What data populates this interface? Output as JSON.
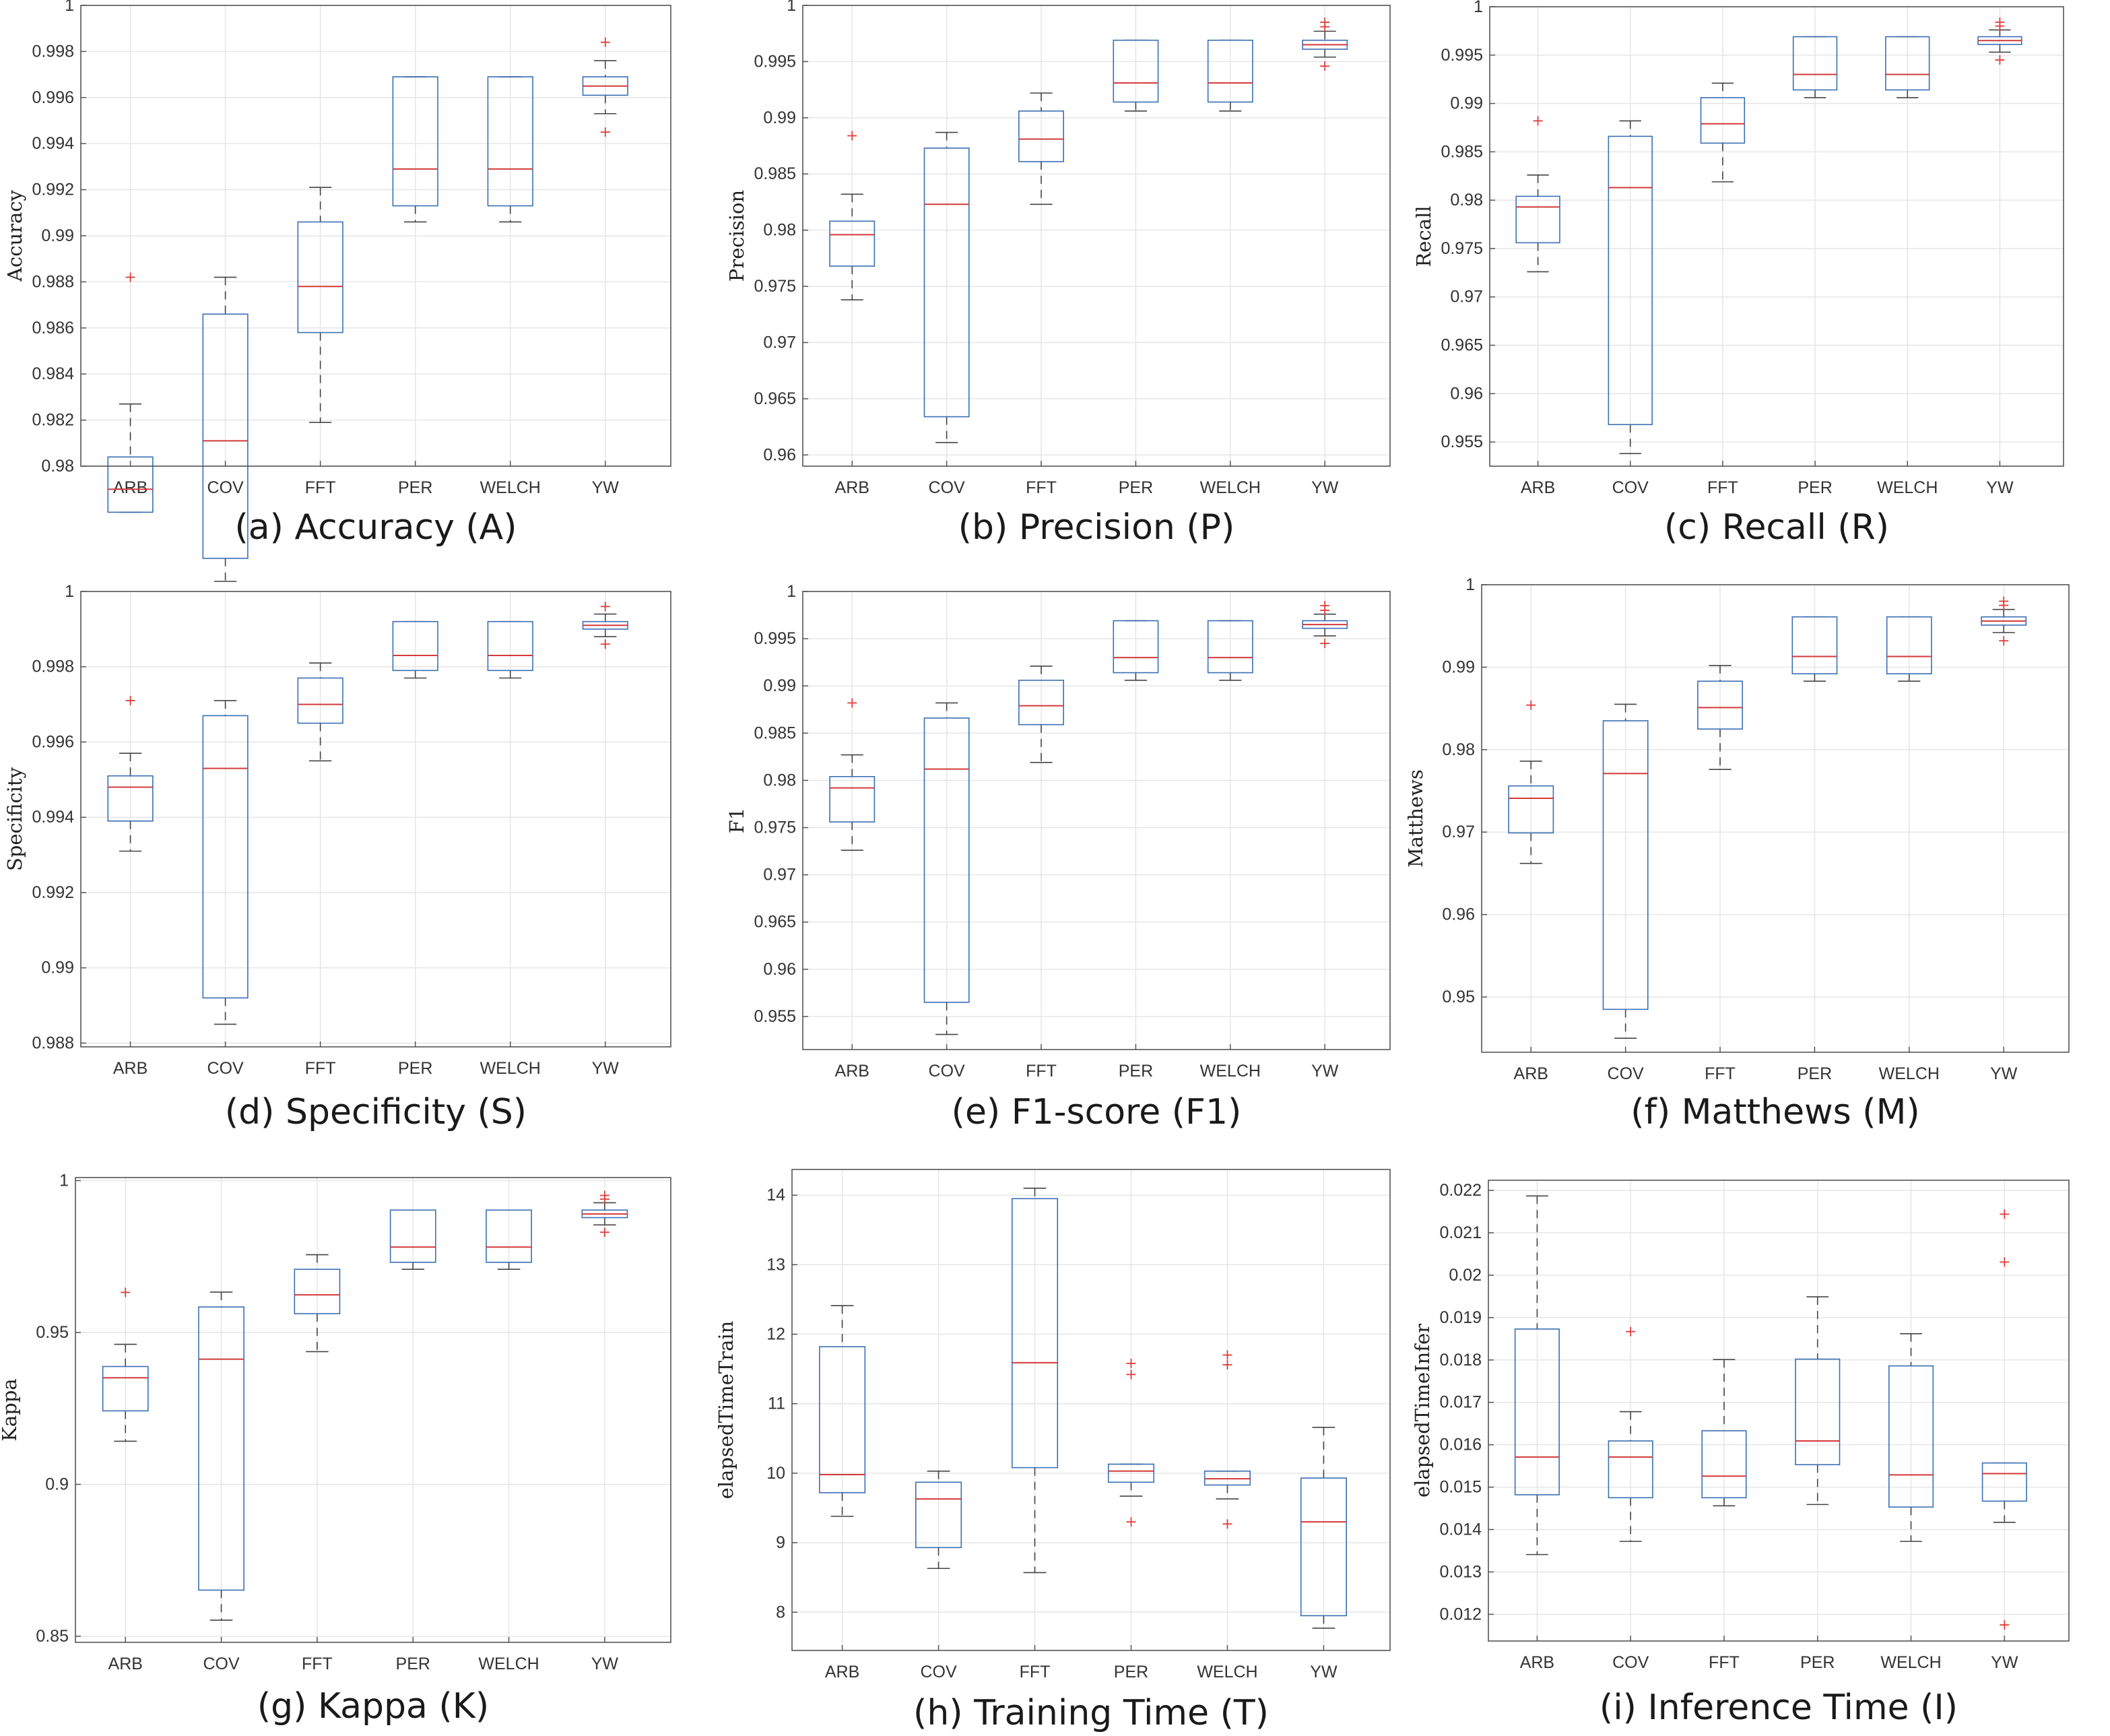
{
  "figure": {
    "categories": [
      "ARB",
      "COV",
      "FFT",
      "PER",
      "WELCH",
      "YW"
    ],
    "colors": {
      "box": "#3a6fb5",
      "median": "#d23a3a",
      "outlier": "#e03c3c",
      "whisker": "#444444",
      "axis": "#555555",
      "grid": "#e6e6e6"
    }
  },
  "chart_data": [
    {
      "type": "boxplot",
      "caption": "(a) Accuracy (A)",
      "ylabel": "Accuracy",
      "ylim": [
        0.98,
        1
      ],
      "yticks": [
        0.98,
        0.982,
        0.984,
        0.986,
        0.988,
        0.99,
        0.992,
        0.994,
        0.996,
        0.998,
        1
      ],
      "yticklabels": [
        "0.98",
        "0.982",
        "0.984",
        "0.986",
        "0.988",
        "0.99",
        "0.992",
        "0.994",
        "0.996",
        "0.998",
        "1"
      ],
      "categories": [
        "ARB",
        "COV",
        "FFT",
        "PER",
        "WELCH",
        "YW"
      ],
      "series": [
        {
          "name": "ARB",
          "whislo": 0.978,
          "q1": 0.978,
          "med": 0.979,
          "q3": 0.9804,
          "whishi": 0.9827,
          "fliers": [
            0.9882
          ]
        },
        {
          "name": "COV",
          "whislo": 0.975,
          "q1": 0.976,
          "med": 0.9811,
          "q3": 0.9866,
          "whishi": 0.9882,
          "fliers": []
        },
        {
          "name": "FFT",
          "whislo": 0.9819,
          "q1": 0.9858,
          "med": 0.9878,
          "q3": 0.9906,
          "whishi": 0.9921,
          "fliers": []
        },
        {
          "name": "PER",
          "whislo": 0.9906,
          "q1": 0.9913,
          "med": 0.9929,
          "q3": 0.9969,
          "whishi": 0.9969,
          "fliers": []
        },
        {
          "name": "WELCH",
          "whislo": 0.9906,
          "q1": 0.9913,
          "med": 0.9929,
          "q3": 0.9969,
          "whishi": 0.9969,
          "fliers": []
        },
        {
          "name": "YW",
          "whislo": 0.9953,
          "q1": 0.9961,
          "med": 0.9965,
          "q3": 0.9969,
          "whishi": 0.9976,
          "fliers": [
            0.9984,
            0.9945
          ]
        }
      ]
    },
    {
      "type": "boxplot",
      "caption": "(b) Precision (P)",
      "ylabel": "Precision",
      "ylim": [
        0.959,
        1
      ],
      "yticks": [
        0.96,
        0.965,
        0.97,
        0.975,
        0.98,
        0.985,
        0.99,
        0.995,
        1
      ],
      "yticklabels": [
        "0.96",
        "0.965",
        "0.97",
        "0.975",
        "0.98",
        "0.985",
        "0.99",
        "0.995",
        "1"
      ],
      "categories": [
        "ARB",
        "COV",
        "FFT",
        "PER",
        "WELCH",
        "YW"
      ],
      "series": [
        {
          "name": "ARB",
          "whislo": 0.9738,
          "q1": 0.9768,
          "med": 0.9796,
          "q3": 0.9808,
          "whishi": 0.9832,
          "fliers": [
            0.9884
          ]
        },
        {
          "name": "COV",
          "whislo": 0.9611,
          "q1": 0.9634,
          "med": 0.9823,
          "q3": 0.9873,
          "whishi": 0.9887,
          "fliers": []
        },
        {
          "name": "FFT",
          "whislo": 0.9823,
          "q1": 0.9861,
          "med": 0.9881,
          "q3": 0.9906,
          "whishi": 0.9922,
          "fliers": []
        },
        {
          "name": "PER",
          "whislo": 0.9906,
          "q1": 0.9914,
          "med": 0.9931,
          "q3": 0.9969,
          "whishi": 0.9969,
          "fliers": []
        },
        {
          "name": "WELCH",
          "whislo": 0.9906,
          "q1": 0.9914,
          "med": 0.9931,
          "q3": 0.9969,
          "whishi": 0.9969,
          "fliers": []
        },
        {
          "name": "YW",
          "whislo": 0.9954,
          "q1": 0.9961,
          "med": 0.9965,
          "q3": 0.9969,
          "whishi": 0.9977,
          "fliers": [
            0.9985,
            0.9981,
            0.9946
          ]
        }
      ]
    },
    {
      "type": "boxplot",
      "caption": "(c) Recall (R)",
      "ylabel": "Recall",
      "ylim": [
        0.9525,
        1
      ],
      "yticks": [
        0.955,
        0.96,
        0.965,
        0.97,
        0.975,
        0.98,
        0.985,
        0.99,
        0.995,
        1
      ],
      "yticklabels": [
        "0.955",
        "0.96",
        "0.965",
        "0.97",
        "0.975",
        "0.98",
        "0.985",
        "0.99",
        "0.995",
        "1"
      ],
      "categories": [
        "ARB",
        "COV",
        "FFT",
        "PER",
        "WELCH",
        "YW"
      ],
      "series": [
        {
          "name": "ARB",
          "whislo": 0.9726,
          "q1": 0.9756,
          "med": 0.9793,
          "q3": 0.9804,
          "whishi": 0.9826,
          "fliers": [
            0.9882
          ]
        },
        {
          "name": "COV",
          "whislo": 0.9538,
          "q1": 0.9568,
          "med": 0.9813,
          "q3": 0.9866,
          "whishi": 0.9882,
          "fliers": []
        },
        {
          "name": "FFT",
          "whislo": 0.9819,
          "q1": 0.9859,
          "med": 0.9879,
          "q3": 0.9906,
          "whishi": 0.9921,
          "fliers": []
        },
        {
          "name": "PER",
          "whislo": 0.9906,
          "q1": 0.9914,
          "med": 0.993,
          "q3": 0.9969,
          "whishi": 0.9969,
          "fliers": []
        },
        {
          "name": "WELCH",
          "whislo": 0.9906,
          "q1": 0.9914,
          "med": 0.993,
          "q3": 0.9969,
          "whishi": 0.9969,
          "fliers": []
        },
        {
          "name": "YW",
          "whislo": 0.9953,
          "q1": 0.9961,
          "med": 0.9965,
          "q3": 0.9969,
          "whishi": 0.9976,
          "fliers": [
            0.9984,
            0.998,
            0.9945
          ]
        }
      ]
    },
    {
      "type": "boxplot",
      "caption": "(d) Specificity (S)",
      "ylabel": "Specificity",
      "ylim": [
        0.9879,
        1
      ],
      "yticks": [
        0.988,
        0.99,
        0.992,
        0.994,
        0.996,
        0.998,
        1
      ],
      "yticklabels": [
        "0.988",
        "0.99",
        "0.992",
        "0.994",
        "0.996",
        "0.998",
        "1"
      ],
      "categories": [
        "ARB",
        "COV",
        "FFT",
        "PER",
        "WELCH",
        "YW"
      ],
      "series": [
        {
          "name": "ARB",
          "whislo": 0.9931,
          "q1": 0.9939,
          "med": 0.9948,
          "q3": 0.9951,
          "whishi": 0.9957,
          "fliers": [
            0.9971
          ]
        },
        {
          "name": "COV",
          "whislo": 0.9885,
          "q1": 0.9892,
          "med": 0.9953,
          "q3": 0.9967,
          "whishi": 0.9971,
          "fliers": []
        },
        {
          "name": "FFT",
          "whislo": 0.9955,
          "q1": 0.9965,
          "med": 0.997,
          "q3": 0.9977,
          "whishi": 0.9981,
          "fliers": []
        },
        {
          "name": "PER",
          "whislo": 0.9977,
          "q1": 0.9979,
          "med": 0.9983,
          "q3": 0.9992,
          "whishi": 0.9992,
          "fliers": []
        },
        {
          "name": "WELCH",
          "whislo": 0.9977,
          "q1": 0.9979,
          "med": 0.9983,
          "q3": 0.9992,
          "whishi": 0.9992,
          "fliers": []
        },
        {
          "name": "YW",
          "whislo": 0.9988,
          "q1": 0.999,
          "med": 0.9991,
          "q3": 0.9992,
          "whishi": 0.9994,
          "fliers": [
            0.9996,
            0.9986
          ]
        }
      ]
    },
    {
      "type": "boxplot",
      "caption": "(e) F1-score (F1)",
      "ylabel": "F1",
      "ylim": [
        0.9515,
        1
      ],
      "yticks": [
        0.955,
        0.96,
        0.965,
        0.97,
        0.975,
        0.98,
        0.985,
        0.99,
        0.995,
        1
      ],
      "yticklabels": [
        "0.955",
        "0.96",
        "0.965",
        "0.97",
        "0.975",
        "0.98",
        "0.985",
        "0.99",
        "0.995",
        "1"
      ],
      "categories": [
        "ARB",
        "COV",
        "FFT",
        "PER",
        "WELCH",
        "YW"
      ],
      "series": [
        {
          "name": "ARB",
          "whislo": 0.9726,
          "q1": 0.9756,
          "med": 0.9792,
          "q3": 0.9804,
          "whishi": 0.9827,
          "fliers": [
            0.9882
          ]
        },
        {
          "name": "COV",
          "whislo": 0.9531,
          "q1": 0.9565,
          "med": 0.9812,
          "q3": 0.9866,
          "whishi": 0.9882,
          "fliers": []
        },
        {
          "name": "FFT",
          "whislo": 0.9819,
          "q1": 0.9859,
          "med": 0.9879,
          "q3": 0.9906,
          "whishi": 0.9921,
          "fliers": []
        },
        {
          "name": "PER",
          "whislo": 0.9906,
          "q1": 0.9914,
          "med": 0.993,
          "q3": 0.9969,
          "whishi": 0.9969,
          "fliers": []
        },
        {
          "name": "WELCH",
          "whislo": 0.9906,
          "q1": 0.9914,
          "med": 0.993,
          "q3": 0.9969,
          "whishi": 0.9969,
          "fliers": []
        },
        {
          "name": "YW",
          "whislo": 0.9953,
          "q1": 0.9961,
          "med": 0.9965,
          "q3": 0.9969,
          "whishi": 0.9976,
          "fliers": [
            0.9985,
            0.998,
            0.9945
          ]
        }
      ]
    },
    {
      "type": "boxplot",
      "caption": "(f) Matthews (M)",
      "ylabel": "Matthews",
      "ylim": [
        0.9433,
        1
      ],
      "yticks": [
        0.95,
        0.96,
        0.97,
        0.98,
        0.99,
        1
      ],
      "yticklabels": [
        "0.95",
        "0.96",
        "0.97",
        "0.98",
        "0.99",
        "1"
      ],
      "categories": [
        "ARB",
        "COV",
        "FFT",
        "PER",
        "WELCH",
        "YW"
      ],
      "series": [
        {
          "name": "ARB",
          "whislo": 0.9662,
          "q1": 0.9699,
          "med": 0.9741,
          "q3": 0.9756,
          "whishi": 0.9786,
          "fliers": [
            0.9854
          ]
        },
        {
          "name": "COV",
          "whislo": 0.945,
          "q1": 0.9485,
          "med": 0.9771,
          "q3": 0.9835,
          "whishi": 0.9855,
          "fliers": []
        },
        {
          "name": "FFT",
          "whislo": 0.9776,
          "q1": 0.9825,
          "med": 0.9851,
          "q3": 0.9883,
          "whishi": 0.9902,
          "fliers": []
        },
        {
          "name": "PER",
          "whislo": 0.9883,
          "q1": 0.9892,
          "med": 0.9913,
          "q3": 0.9961,
          "whishi": 0.9961,
          "fliers": []
        },
        {
          "name": "WELCH",
          "whislo": 0.9883,
          "q1": 0.9892,
          "med": 0.9913,
          "q3": 0.9961,
          "whishi": 0.9961,
          "fliers": []
        },
        {
          "name": "YW",
          "whislo": 0.9942,
          "q1": 0.9951,
          "med": 0.9956,
          "q3": 0.9961,
          "whishi": 0.997,
          "fliers": [
            0.998,
            0.9975,
            0.9932
          ]
        }
      ]
    },
    {
      "type": "boxplot",
      "caption": "(g) Kappa (K)",
      "ylabel": "Kappa",
      "ylim": [
        0.848,
        1.001
      ],
      "yticks": [
        0.85,
        0.9,
        0.95,
        1
      ],
      "yticklabels": [
        "0.85",
        "0.9",
        "0.95",
        "1"
      ],
      "categories": [
        "ARB",
        "COV",
        "FFT",
        "PER",
        "WELCH",
        "YW"
      ],
      "series": [
        {
          "name": "ARB",
          "whislo": 0.9142,
          "q1": 0.9242,
          "med": 0.9351,
          "q3": 0.9388,
          "whishi": 0.9461,
          "fliers": [
            0.9632
          ]
        },
        {
          "name": "COV",
          "whislo": 0.8553,
          "q1": 0.8652,
          "med": 0.9412,
          "q3": 0.9584,
          "whishi": 0.9633,
          "fliers": []
        },
        {
          "name": "FFT",
          "whislo": 0.9437,
          "q1": 0.9562,
          "med": 0.9624,
          "q3": 0.9708,
          "whishi": 0.9756,
          "fliers": []
        },
        {
          "name": "PER",
          "whislo": 0.9708,
          "q1": 0.9731,
          "med": 0.9781,
          "q3": 0.9903,
          "whishi": 0.9903,
          "fliers": []
        },
        {
          "name": "WELCH",
          "whislo": 0.9708,
          "q1": 0.9731,
          "med": 0.9781,
          "q3": 0.9903,
          "whishi": 0.9903,
          "fliers": []
        },
        {
          "name": "YW",
          "whislo": 0.9854,
          "q1": 0.9878,
          "med": 0.989,
          "q3": 0.9903,
          "whishi": 0.9927,
          "fliers": [
            0.9951,
            0.9939,
            0.983
          ]
        }
      ]
    },
    {
      "type": "boxplot",
      "caption": "(h) Training Time (T)",
      "ylabel": "elapsedTimeTrain",
      "ylim": [
        7.45,
        14.37
      ],
      "yticks": [
        8,
        9,
        10,
        11,
        12,
        13,
        14
      ],
      "yticklabels": [
        "8",
        "9",
        "10",
        "11",
        "12",
        "13",
        "14"
      ],
      "categories": [
        "ARB",
        "COV",
        "FFT",
        "PER",
        "WELCH",
        "YW"
      ],
      "series": [
        {
          "name": "ARB",
          "whislo": 9.38,
          "q1": 9.72,
          "med": 9.98,
          "q3": 11.82,
          "whishi": 12.41,
          "fliers": []
        },
        {
          "name": "COV",
          "whislo": 8.63,
          "q1": 8.93,
          "med": 9.63,
          "q3": 9.87,
          "whishi": 10.03,
          "fliers": []
        },
        {
          "name": "FFT",
          "whislo": 8.57,
          "q1": 10.08,
          "med": 11.59,
          "q3": 13.95,
          "whishi": 14.1,
          "fliers": []
        },
        {
          "name": "PER",
          "whislo": 9.67,
          "q1": 9.87,
          "med": 10.03,
          "q3": 10.13,
          "whishi": 10.13,
          "fliers": [
            11.58,
            11.42,
            9.3
          ]
        },
        {
          "name": "WELCH",
          "whislo": 9.63,
          "q1": 9.83,
          "med": 9.92,
          "q3": 10.03,
          "whishi": 10.03,
          "fliers": [
            11.7,
            11.56,
            9.27
          ]
        },
        {
          "name": "YW",
          "whislo": 7.77,
          "q1": 7.95,
          "med": 9.3,
          "q3": 9.93,
          "whishi": 10.66,
          "fliers": []
        }
      ]
    },
    {
      "type": "boxplot",
      "caption": "(i) Inference Time (I)",
      "ylabel": "elapsedTimeInfer",
      "ylim": [
        0.01137,
        0.02224
      ],
      "yticks": [
        0.012,
        0.013,
        0.014,
        0.015,
        0.016,
        0.017,
        0.018,
        0.019,
        0.02,
        0.021,
        0.022
      ],
      "yticklabels": [
        "0.012",
        "0.013",
        "0.014",
        "0.015",
        "0.016",
        "0.017",
        "0.018",
        "0.019",
        "0.02",
        "0.021",
        "0.022"
      ],
      "categories": [
        "ARB",
        "COV",
        "FFT",
        "PER",
        "WELCH",
        "YW"
      ],
      "series": [
        {
          "name": "ARB",
          "whislo": 0.01341,
          "q1": 0.01482,
          "med": 0.01571,
          "q3": 0.01873,
          "whishi": 0.02187,
          "fliers": []
        },
        {
          "name": "COV",
          "whislo": 0.01372,
          "q1": 0.01475,
          "med": 0.01571,
          "q3": 0.01609,
          "whishi": 0.01678,
          "fliers": [
            0.01867
          ]
        },
        {
          "name": "FFT",
          "whislo": 0.01456,
          "q1": 0.01475,
          "med": 0.01526,
          "q3": 0.01633,
          "whishi": 0.01801,
          "fliers": []
        },
        {
          "name": "PER",
          "whislo": 0.01459,
          "q1": 0.01553,
          "med": 0.01609,
          "q3": 0.01802,
          "whishi": 0.01949,
          "fliers": []
        },
        {
          "name": "WELCH",
          "whislo": 0.01372,
          "q1": 0.01453,
          "med": 0.01529,
          "q3": 0.01786,
          "whishi": 0.01862,
          "fliers": []
        },
        {
          "name": "YW",
          "whislo": 0.01417,
          "q1": 0.01467,
          "med": 0.01532,
          "q3": 0.01557,
          "whishi": 0.01557,
          "fliers": [
            0.02144,
            0.02031,
            0.01175
          ]
        }
      ]
    }
  ]
}
